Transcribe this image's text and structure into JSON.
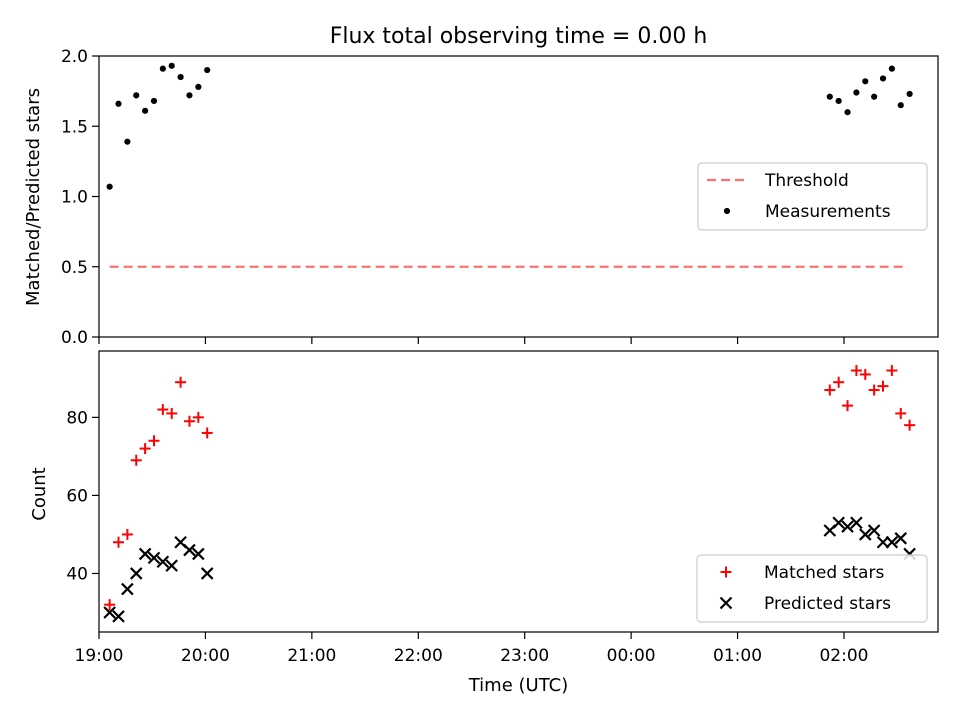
{
  "title": "Flux total observing time = 0.00 h",
  "colors": {
    "threshold": "#ff7070",
    "measurement": "#000000",
    "matched": "#ff0000",
    "predicted": "#000000"
  },
  "chart_data": [
    {
      "type": "scatter",
      "title": "Flux total observing time = 0.00 h",
      "ylabel": "Matched/Predicted stars",
      "xlabel": "",
      "xlim": [
        "19:00",
        "02:53"
      ],
      "ylim": [
        0,
        2.0
      ],
      "yticks": [
        "0.0",
        "0.5",
        "1.0",
        "1.5",
        "2.0"
      ],
      "legend_position": "center-right",
      "series": [
        {
          "name": "Threshold",
          "style": "dashed-line",
          "points": [
            [
              "19:06",
              0.5
            ],
            [
              "02:36",
              0.5
            ]
          ]
        },
        {
          "name": "Measurements",
          "style": "dot",
          "points": [
            [
              "19:06",
              1.07
            ],
            [
              "19:11",
              1.66
            ],
            [
              "19:16",
              1.39
            ],
            [
              "19:21",
              1.72
            ],
            [
              "19:26",
              1.61
            ],
            [
              "19:31",
              1.68
            ],
            [
              "19:36",
              1.91
            ],
            [
              "19:41",
              1.93
            ],
            [
              "19:46",
              1.85
            ],
            [
              "19:51",
              1.72
            ],
            [
              "19:56",
              1.78
            ],
            [
              "20:01",
              1.9
            ],
            [
              "01:52",
              1.71
            ],
            [
              "01:57",
              1.68
            ],
            [
              "02:02",
              1.6
            ],
            [
              "02:07",
              1.74
            ],
            [
              "02:12",
              1.82
            ],
            [
              "02:17",
              1.71
            ],
            [
              "02:22",
              1.84
            ],
            [
              "02:27",
              1.91
            ],
            [
              "02:32",
              1.65
            ],
            [
              "02:37",
              1.73
            ]
          ]
        }
      ]
    },
    {
      "type": "scatter",
      "xlabel": "Time (UTC)",
      "ylabel": "Count",
      "ylim": [
        25,
        97
      ],
      "yticks": [
        "40",
        "60",
        "80"
      ],
      "xticks": [
        "19:00",
        "20:00",
        "21:00",
        "22:00",
        "23:00",
        "00:00",
        "01:00",
        "02:00"
      ],
      "legend_position": "lower-right",
      "series": [
        {
          "name": "Matched stars",
          "marker": "+",
          "points": [
            [
              "19:06",
              32
            ],
            [
              "19:11",
              48
            ],
            [
              "19:16",
              50
            ],
            [
              "19:21",
              69
            ],
            [
              "19:26",
              72
            ],
            [
              "19:31",
              74
            ],
            [
              "19:36",
              82
            ],
            [
              "19:41",
              81
            ],
            [
              "19:46",
              89
            ],
            [
              "19:51",
              79
            ],
            [
              "19:56",
              80
            ],
            [
              "20:01",
              76
            ],
            [
              "01:52",
              87
            ],
            [
              "01:57",
              89
            ],
            [
              "02:02",
              83
            ],
            [
              "02:07",
              92
            ],
            [
              "02:12",
              91
            ],
            [
              "02:17",
              87
            ],
            [
              "02:22",
              88
            ],
            [
              "02:27",
              92
            ],
            [
              "02:32",
              81
            ],
            [
              "02:37",
              78
            ]
          ]
        },
        {
          "name": "Predicted stars",
          "marker": "x",
          "points": [
            [
              "19:06",
              30
            ],
            [
              "19:11",
              29
            ],
            [
              "19:16",
              36
            ],
            [
              "19:21",
              40
            ],
            [
              "19:26",
              45
            ],
            [
              "19:31",
              44
            ],
            [
              "19:36",
              43
            ],
            [
              "19:41",
              42
            ],
            [
              "19:46",
              48
            ],
            [
              "19:51",
              46
            ],
            [
              "19:56",
              45
            ],
            [
              "20:01",
              40
            ],
            [
              "01:52",
              51
            ],
            [
              "01:57",
              53
            ],
            [
              "02:02",
              52
            ],
            [
              "02:07",
              53
            ],
            [
              "02:12",
              50
            ],
            [
              "02:17",
              51
            ],
            [
              "02:22",
              48
            ],
            [
              "02:27",
              48
            ],
            [
              "02:32",
              49
            ],
            [
              "02:37",
              45
            ]
          ]
        }
      ]
    }
  ]
}
